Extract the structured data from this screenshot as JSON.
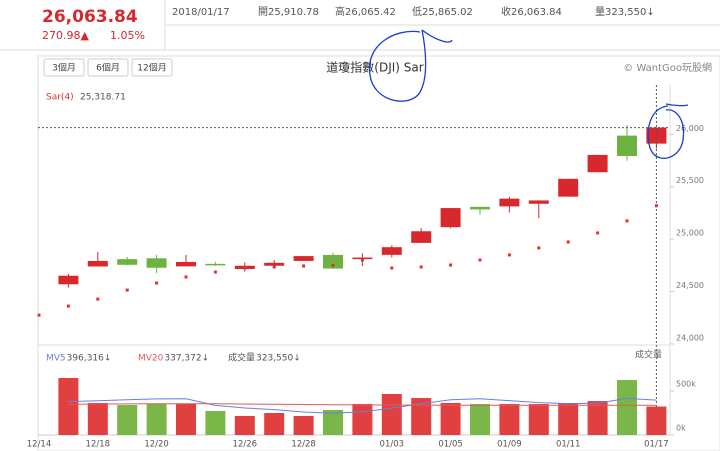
{
  "header": {
    "price": "26,063.84",
    "change": "270.98▲",
    "change_pct": "1.05%",
    "date": "2018/01/17",
    "open": "開25,910.78",
    "high": "高26,065.42",
    "low": "低25,865.02",
    "close": "收26,063.84",
    "volume": "量323,550↓"
  },
  "buttons": [
    "3個月",
    "6個月",
    "12個月"
  ],
  "chart_data": [
    {
      "type": "candlestick",
      "title": "道瓊指數(DJI) Sar",
      "source": "© WantGoo玩股網",
      "categories": [
        "12/14",
        null,
        "12/18",
        null,
        "12/20",
        null,
        null,
        "12/26",
        null,
        "12/28",
        null,
        null,
        "01/03",
        null,
        "01/05",
        null,
        "01/09",
        null,
        "01/11",
        null,
        null,
        "01/17"
      ],
      "open": [
        null,
        24569,
        24739,
        24809,
        24817,
        24740,
        24764,
        24715,
        24746,
        24792,
        24849,
        24809,
        24850,
        24964,
        25114,
        25308,
        25312,
        25337,
        25405,
        25638,
        25987,
        25910.78
      ],
      "high": [
        null,
        24668,
        24876,
        24830,
        24850,
        24850,
        24784,
        24778,
        24800,
        24838,
        24872,
        24864,
        24941,
        25105,
        25296,
        25311,
        25403,
        25370,
        25575,
        25804,
        26086,
        26065.42
      ],
      "low": [
        null,
        24538,
        24739,
        24749,
        24675,
        24740,
        24745,
        24689,
        24742,
        24791,
        24714,
        24741,
        24825,
        24963,
        25104,
        25235,
        25254,
        25200,
        25404,
        25637,
        25749,
        25865.02
      ],
      "close": [
        null,
        24651,
        24792,
        24755,
        24727,
        24782,
        24754,
        24746,
        24774,
        24838,
        24719,
        24824,
        24923,
        25075,
        25296,
        25283,
        25386,
        25369,
        25575,
        25803,
        25793,
        26063.84
      ],
      "up_color": "#d8282d",
      "down_color": "#6db33f",
      "series": [
        {
          "name": "Sar(4)",
          "color": "#e03030",
          "value_label": "25,318.71",
          "values": [
            24275,
            24361,
            24428,
            24514,
            24581,
            24639,
            24686,
            24725,
            24734,
            24744,
            24750,
            24801,
            24725,
            24734,
            24753,
            24801,
            24849,
            24916,
            24973,
            25059,
            25174,
            25318.71
          ]
        }
      ],
      "ylim": [
        23990,
        26470
      ],
      "yticks": [
        {
          "value": 24000,
          "label": "24,000"
        },
        {
          "value": 24500,
          "label": "24,500"
        },
        {
          "value": 25000,
          "label": "25,000"
        },
        {
          "value": 25500,
          "label": "25,500"
        },
        {
          "value": 26000,
          "label": "26,000"
        }
      ]
    },
    {
      "type": "volume",
      "ylabel": "成交量",
      "series": [
        {
          "name": "成交量",
          "value_label": "323,550↓",
          "values": [
            null,
            648000,
            364000,
            341000,
            352000,
            352000,
            273000,
            216000,
            250000,
            216000,
            284000,
            352000,
            466000,
            420000,
            364000,
            352000,
            352000,
            352000,
            364000,
            386000,
            625000,
            323550
          ]
        },
        {
          "name": "MV5",
          "color": "#6a7fe0",
          "value_label": "396,316↓",
          "values": [
            null,
            380000,
            390000,
            400000,
            410000,
            411000,
            336000,
            307000,
            289000,
            261000,
            248000,
            264000,
            306000,
            356000,
            401000,
            411000,
            391000,
            368000,
            357000,
            361000,
            416000,
            396316
          ]
        },
        {
          "name": "MV20",
          "color": "#e05a5a",
          "value_label": "337,372↓",
          "values": [
            null,
            350000,
            352000,
            354000,
            355000,
            356000,
            355000,
            352000,
            350000,
            347000,
            344000,
            342000,
            341000,
            340000,
            339000,
            338000,
            338000,
            337000,
            337000,
            337000,
            338000,
            337372
          ]
        }
      ],
      "ylim": [
        0,
        966000
      ],
      "yticks": [
        {
          "value": 0,
          "label": "0k"
        },
        {
          "value": 500000,
          "label": "500k"
        }
      ]
    }
  ]
}
